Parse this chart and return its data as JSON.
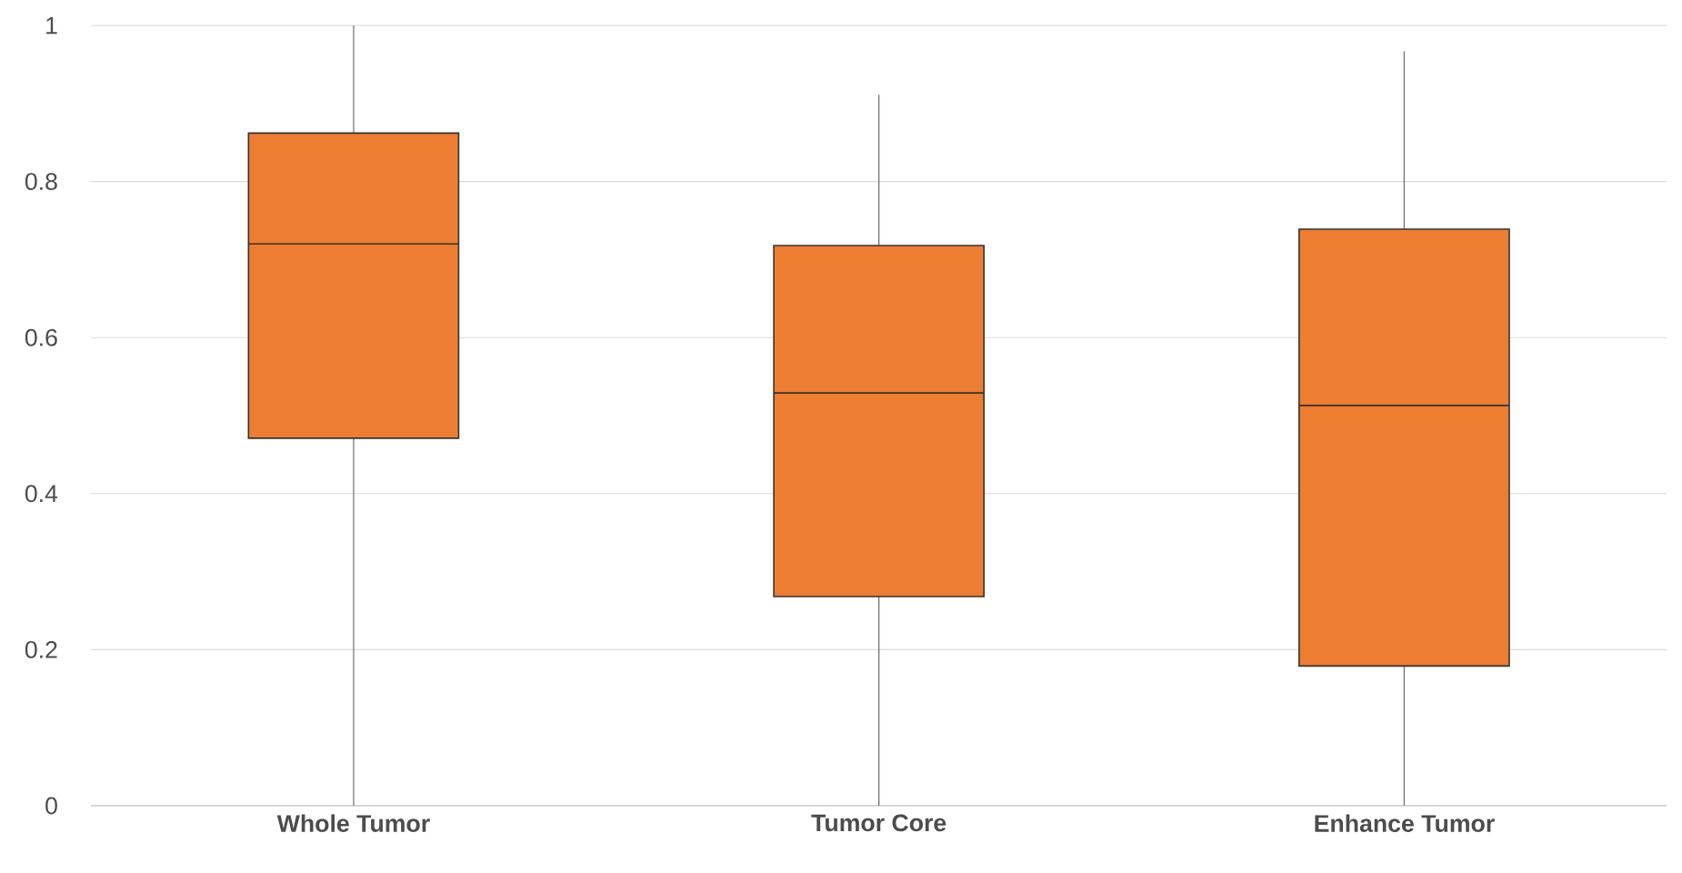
{
  "chart_data": {
    "type": "box",
    "categories": [
      "Whole Tumor",
      "Tumor Core",
      "Enhance Tumor"
    ],
    "color": "#ed7d31",
    "boxes": [
      {
        "low": 0,
        "q1": 0.471,
        "median": 0.72,
        "q3": 0.862,
        "high": 1.0
      },
      {
        "low": 0,
        "q1": 0.268,
        "median": 0.529,
        "q3": 0.718,
        "high": 0.911
      },
      {
        "low": 0,
        "q1": 0.179,
        "median": 0.513,
        "q3": 0.739,
        "high": 0.967
      }
    ],
    "ylim": [
      0,
      1
    ],
    "yticks": [
      0,
      0.2,
      0.4,
      0.6,
      0.8,
      1
    ],
    "grid": "y"
  }
}
